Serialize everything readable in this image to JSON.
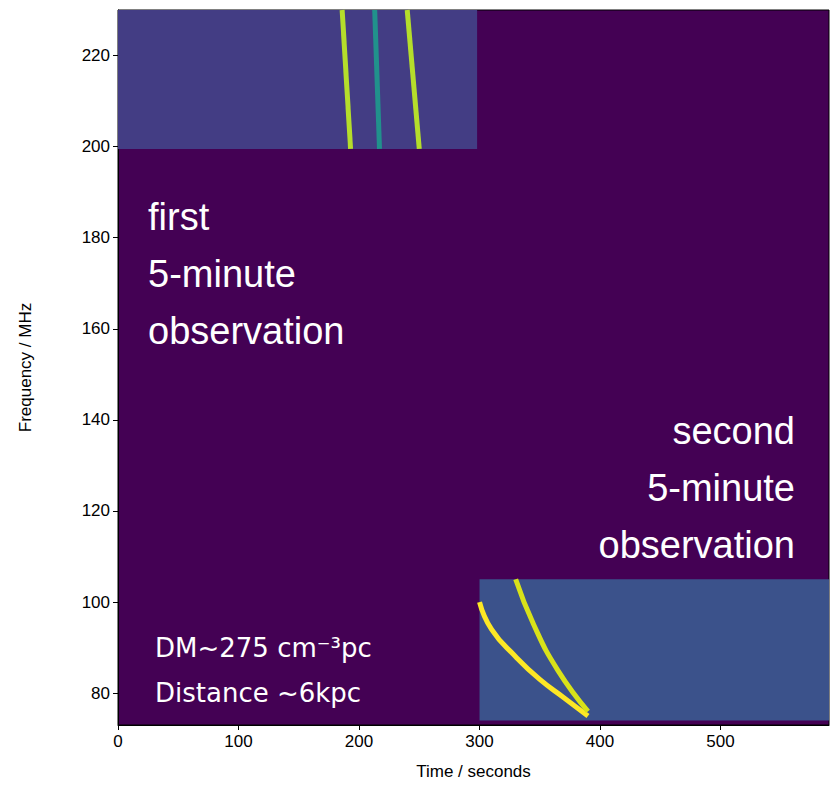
{
  "chart_data": {
    "type": "spectrogram",
    "color": "#440154",
    "xlabel": "Time / seconds",
    "ylabel": "Frequency / MHz",
    "xlim": [
      0,
      590
    ],
    "xticks": [
      0,
      100,
      200,
      300,
      400,
      500
    ],
    "ylim": [
      73,
      230
    ],
    "yticks": [
      80,
      100,
      120,
      140,
      160,
      180,
      200,
      220
    ],
    "grid": false,
    "observations": [
      {
        "time": [
          0,
          298
        ],
        "frequency": [
          199.5,
          230
        ],
        "color": "#433d84"
      },
      {
        "time": [
          300,
          590
        ],
        "frequency": [
          74,
          105
        ],
        "color": "#3b528b"
      }
    ],
    "pulses": [
      {
        "x": [
          186,
          193
        ],
        "values": [
          230,
          199.5
        ],
        "color": "#b5de2b"
      },
      {
        "x": [
          213,
          217
        ],
        "values": [
          230,
          199.5
        ],
        "color": "#21918c"
      },
      {
        "x": [
          240,
          250
        ],
        "values": [
          230,
          199.5
        ],
        "color": "#b5de2b"
      },
      {
        "x": [
          300,
          310,
          330,
          350,
          370,
          390
        ],
        "values": [
          100,
          94,
          88,
          83,
          79,
          75
        ],
        "color": "#fde725"
      },
      {
        "x": [
          330,
          345,
          365,
          390
        ],
        "values": [
          105,
          95,
          85,
          76
        ],
        "color": "#d8e219"
      }
    ],
    "annotations": [
      {
        "lines": [
          "first",
          "5-minute",
          "observation"
        ]
      },
      {
        "lines": [
          "second",
          "5-minute",
          "observation"
        ]
      },
      {
        "lines": [
          "DM~275 cm⁻³pc",
          "Distance ~6kpc"
        ]
      }
    ]
  }
}
